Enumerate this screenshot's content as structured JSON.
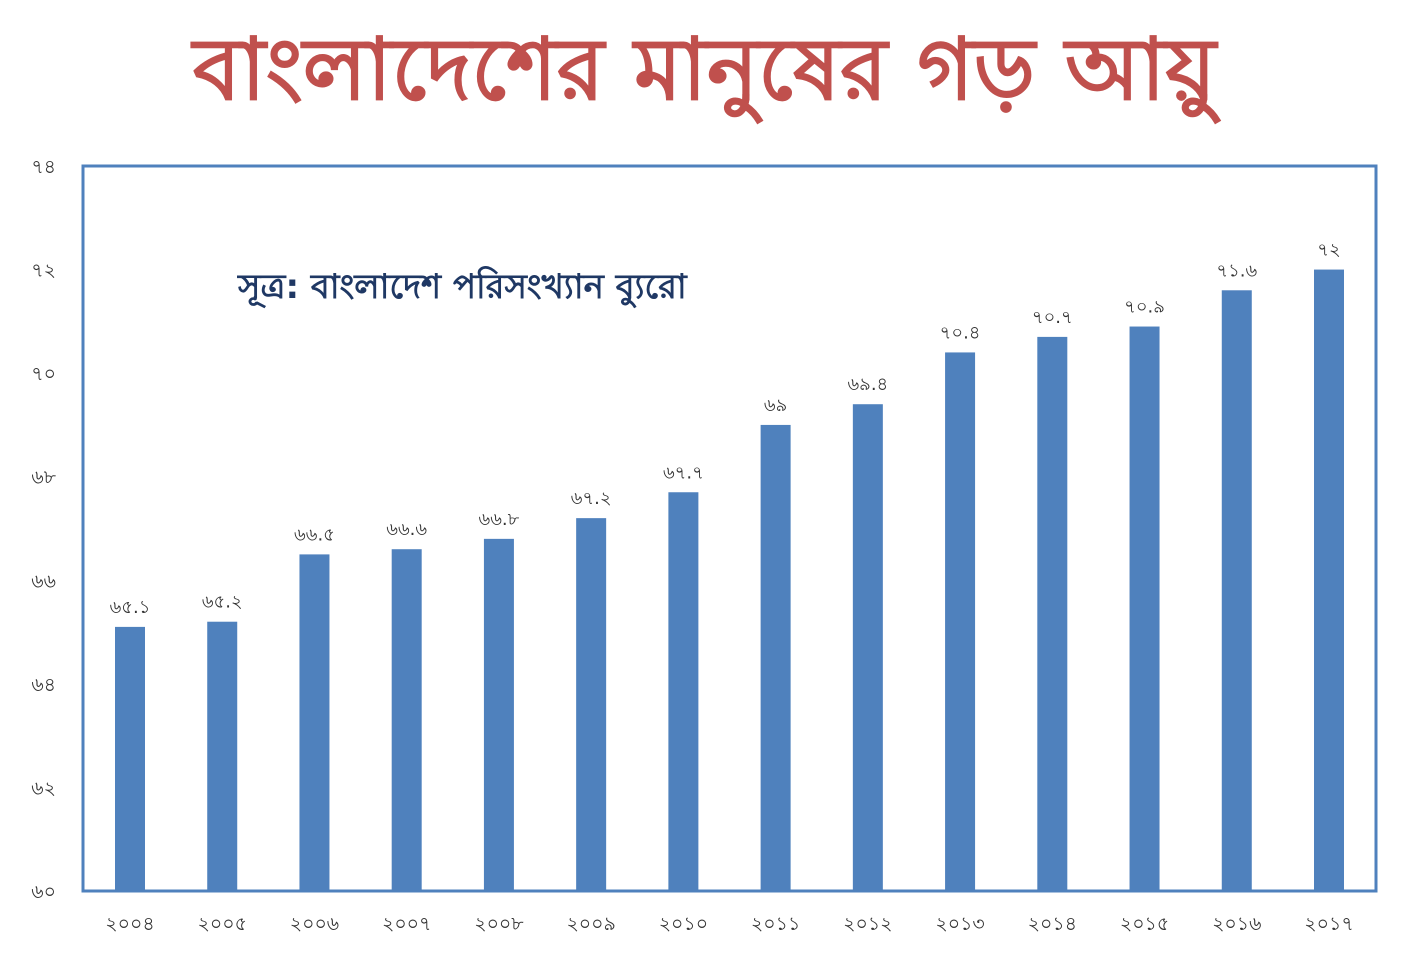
{
  "title": "বাংলাদেশের মানুষের গড় আয়ু",
  "colors": {
    "title": "#c0504d",
    "bar": "#4f81bd",
    "frame": "#4f81bd",
    "source": "#1f3864"
  },
  "chart_data": {
    "type": "bar",
    "title": "বাংলাদেশের মানুষের গড় আয়ু",
    "annotation": "সূত্র: বাংলাদেশ পরিসংখ্যান ব্যুরো",
    "categories": [
      "২০০৪",
      "২০০৫",
      "২০০৬",
      "২০০৭",
      "২০০৮",
      "২০০৯",
      "২০১০",
      "২০১১",
      "২০১২",
      "২০১৩",
      "২০১৪",
      "২০১৫",
      "২০১৬",
      "২০১৭"
    ],
    "values": [
      65.1,
      65.2,
      66.5,
      66.6,
      66.8,
      67.2,
      67.7,
      69,
      69.4,
      70.4,
      70.7,
      70.9,
      71.6,
      72
    ],
    "value_labels": [
      "৬৫.১",
      "৬৫.২",
      "৬৬.৫",
      "৬৬.৬",
      "৬৬.৮",
      "৬৭.২",
      "৬৭.৭",
      "৬৯",
      "৬৯.৪",
      "৭০.৪",
      "৭০.৭",
      "৭০.৯",
      "৭১.৬",
      "৭২"
    ],
    "ylim": [
      60,
      74
    ],
    "yticks": [
      60,
      62,
      64,
      66,
      68,
      70,
      72,
      74
    ],
    "ytick_labels": [
      "৬০",
      "৬২",
      "৬৪",
      "৬৬",
      "৬৮",
      "৭০",
      "৭২",
      "৭৪"
    ],
    "xlabel": "",
    "ylabel": "",
    "grid": false,
    "legend": "none"
  }
}
